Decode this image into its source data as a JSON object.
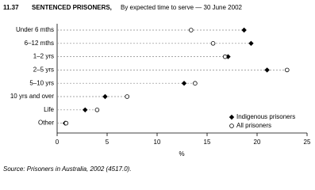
{
  "chart_data": {
    "type": "dot",
    "figure_number": "11.37",
    "title": "SENTENCED PRISONERS,",
    "subtitle": "By expected time to serve — 30 June 2002",
    "categories": [
      "Under 6 mths",
      "6–12 mths",
      "1–2 yrs",
      "2–5 yrs",
      "5–10 yrs",
      "10 yrs and over",
      "Life",
      "Other"
    ],
    "series": [
      {
        "name": "Indigenous prisoners",
        "color": "#000000",
        "marker": "diamond",
        "values": [
          18.7,
          19.4,
          17.1,
          21.0,
          12.7,
          4.8,
          2.8,
          0.8
        ]
      },
      {
        "name": "All prisoners",
        "color": "#000000",
        "marker": "open-circle",
        "values": [
          13.4,
          15.6,
          16.8,
          23.0,
          13.8,
          7.0,
          4.0,
          0.9
        ]
      }
    ],
    "xlim": [
      0,
      25
    ],
    "xticks": [
      0,
      5,
      10,
      15,
      20,
      25
    ],
    "xlabel": "%",
    "legend": "bottom-right",
    "source": "Source: Prisoners in Australia, 2002 (4517.0)."
  }
}
